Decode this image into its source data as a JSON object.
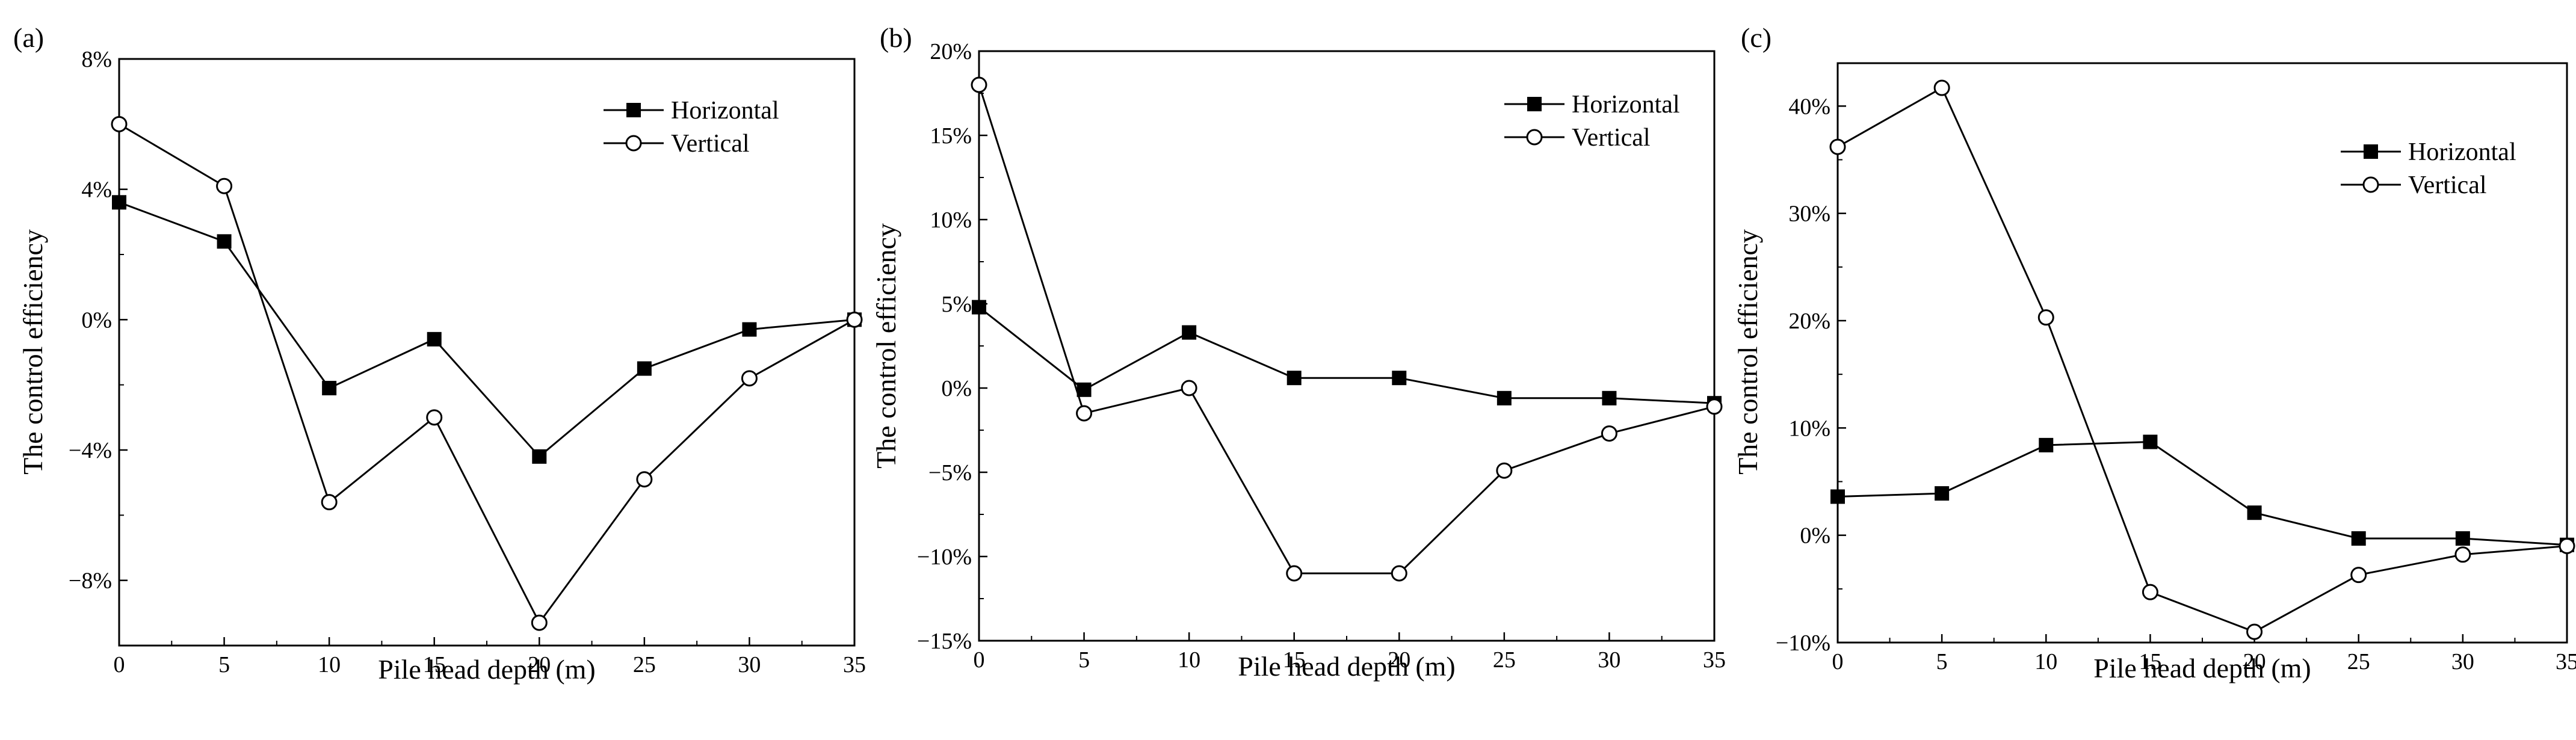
{
  "figure_title": "",
  "chart_data": [
    {
      "type": "line",
      "panel": "(a)",
      "title": "",
      "xlabel": "Pile head depth (m)",
      "ylabel": "The control efficiency",
      "x": [
        0,
        5,
        10,
        15,
        20,
        25,
        30,
        35
      ],
      "xlim": [
        0,
        35
      ],
      "xticks": [
        0,
        5,
        10,
        15,
        20,
        25,
        30,
        35
      ],
      "ylim": [
        -10,
        8
      ],
      "yticks": [
        -8,
        -4,
        0,
        4,
        8
      ],
      "ytick_labels": [
        "−8%",
        "−4%",
        "0%",
        "4%",
        "8%"
      ],
      "legend_position": "top-right",
      "grid": false,
      "series": [
        {
          "name": "Horizontal",
          "marker": "filled-square",
          "values": [
            3.6,
            2.4,
            -2.1,
            -0.6,
            -4.2,
            -1.5,
            -0.3,
            0.0
          ]
        },
        {
          "name": "Vertical",
          "marker": "open-circle",
          "values": [
            6.0,
            4.1,
            -5.6,
            -3.0,
            -9.3,
            -4.9,
            -1.8,
            0.0
          ]
        }
      ]
    },
    {
      "type": "line",
      "panel": "(b)",
      "title": "",
      "xlabel": "Pile head depth (m)",
      "ylabel": "The control efficiency",
      "x": [
        0,
        5,
        10,
        15,
        20,
        25,
        30,
        35
      ],
      "xlim": [
        0,
        35
      ],
      "xticks": [
        0,
        5,
        10,
        15,
        20,
        25,
        30,
        35
      ],
      "ylim": [
        -15,
        20
      ],
      "yticks": [
        -15,
        -10,
        -5,
        0,
        5,
        10,
        15,
        20
      ],
      "ytick_labels": [
        "−15%",
        "−10%",
        "−5%",
        "0%",
        "5%",
        "10%",
        "15%",
        "20%"
      ],
      "legend_position": "top-right",
      "grid": false,
      "series": [
        {
          "name": "Horizontal",
          "marker": "filled-square",
          "values": [
            4.8,
            -0.1,
            3.3,
            0.6,
            0.6,
            -0.6,
            -0.6,
            -0.9
          ]
        },
        {
          "name": "Vertical",
          "marker": "open-circle",
          "values": [
            18.0,
            -1.5,
            0.0,
            -11.0,
            -11.0,
            -4.9,
            -2.7,
            -1.1
          ]
        }
      ]
    },
    {
      "type": "line",
      "panel": "(c)",
      "title": "",
      "xlabel": "Pile head depth (m)",
      "ylabel": "The control efficiency",
      "x": [
        0,
        5,
        10,
        15,
        20,
        25,
        30,
        35
      ],
      "xlim": [
        0,
        35
      ],
      "xticks": [
        0,
        5,
        10,
        15,
        20,
        25,
        30,
        35
      ],
      "ylim": [
        -10,
        44
      ],
      "yticks": [
        -10,
        0,
        10,
        20,
        30,
        40
      ],
      "ytick_labels": [
        "−10%",
        "0%",
        "10%",
        "20%",
        "30%",
        "40%"
      ],
      "legend_position": "upper-right",
      "grid": false,
      "series": [
        {
          "name": "Horizontal",
          "marker": "filled-square",
          "values": [
            3.6,
            3.9,
            8.4,
            8.7,
            2.1,
            -0.3,
            -0.3,
            -0.9
          ]
        },
        {
          "name": "Vertical",
          "marker": "open-circle",
          "values": [
            36.2,
            41.7,
            20.3,
            -5.3,
            -9.0,
            -3.7,
            -1.8,
            -1.0
          ]
        }
      ]
    }
  ]
}
